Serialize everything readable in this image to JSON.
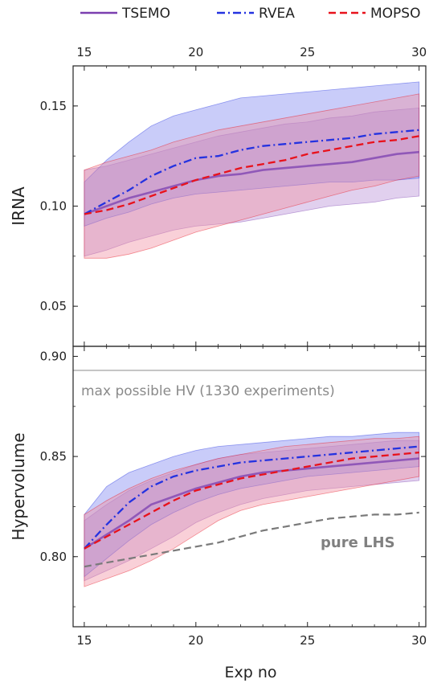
{
  "legend": {
    "placement": "top",
    "items": [
      {
        "name": "TSEMO",
        "color": "#7b3fb0",
        "dash": "solid"
      },
      {
        "name": "RVEA",
        "color": "#2432e0",
        "dash": "dashdot"
      },
      {
        "name": "MOPSO",
        "color": "#e8121c",
        "dash": "dashed"
      }
    ]
  },
  "xlabel": "Exp no",
  "chart_data": [
    {
      "type": "line",
      "panel": "top",
      "ylabel": "IRNA",
      "xlim": [
        14.5,
        30.3
      ],
      "ylim": [
        0.03,
        0.17
      ],
      "xticks": [
        15,
        20,
        25,
        30
      ],
      "yticks": [
        0.05,
        0.1,
        0.15
      ],
      "ytick_labels": [
        "0.05",
        "0.10",
        "0.15"
      ],
      "x": [
        15,
        16,
        17,
        18,
        19,
        20,
        21,
        22,
        23,
        24,
        25,
        26,
        27,
        28,
        29,
        30
      ],
      "series": [
        {
          "name": "TSEMO",
          "color": "#7b3fb0",
          "dash": "solid",
          "values": [
            0.096,
            0.1,
            0.104,
            0.107,
            0.11,
            0.113,
            0.115,
            0.116,
            0.118,
            0.119,
            0.12,
            0.121,
            0.122,
            0.124,
            0.126,
            0.127
          ],
          "upper": [
            0.118,
            0.12,
            0.123,
            0.126,
            0.129,
            0.132,
            0.135,
            0.137,
            0.139,
            0.141,
            0.142,
            0.144,
            0.145,
            0.147,
            0.148,
            0.149
          ],
          "lower": [
            0.075,
            0.078,
            0.082,
            0.085,
            0.088,
            0.09,
            0.091,
            0.092,
            0.094,
            0.096,
            0.098,
            0.1,
            0.101,
            0.102,
            0.104,
            0.105
          ]
        },
        {
          "name": "RVEA",
          "color": "#2432e0",
          "dash": "dashdot",
          "values": [
            0.096,
            0.102,
            0.108,
            0.115,
            0.12,
            0.124,
            0.125,
            0.128,
            0.13,
            0.131,
            0.132,
            0.133,
            0.134,
            0.136,
            0.137,
            0.138
          ],
          "upper": [
            0.112,
            0.123,
            0.132,
            0.14,
            0.145,
            0.148,
            0.151,
            0.154,
            0.155,
            0.156,
            0.157,
            0.158,
            0.159,
            0.16,
            0.161,
            0.162
          ],
          "lower": [
            0.09,
            0.094,
            0.097,
            0.101,
            0.104,
            0.106,
            0.107,
            0.108,
            0.109,
            0.11,
            0.111,
            0.112,
            0.112,
            0.113,
            0.113,
            0.114
          ]
        },
        {
          "name": "MOPSO",
          "color": "#e8121c",
          "dash": "dashed",
          "values": [
            0.096,
            0.098,
            0.101,
            0.105,
            0.109,
            0.113,
            0.116,
            0.119,
            0.121,
            0.123,
            0.126,
            0.128,
            0.13,
            0.132,
            0.133,
            0.135
          ],
          "upper": [
            0.118,
            0.122,
            0.125,
            0.128,
            0.132,
            0.135,
            0.138,
            0.14,
            0.142,
            0.144,
            0.146,
            0.148,
            0.15,
            0.152,
            0.154,
            0.156
          ],
          "lower": [
            0.074,
            0.074,
            0.076,
            0.079,
            0.083,
            0.087,
            0.09,
            0.093,
            0.096,
            0.099,
            0.102,
            0.105,
            0.108,
            0.11,
            0.113,
            0.115
          ]
        }
      ]
    },
    {
      "type": "line",
      "panel": "bottom",
      "ylabel": "Hypervolume",
      "xlim": [
        14.5,
        30.3
      ],
      "ylim": [
        0.765,
        0.905
      ],
      "xticks": [
        15,
        20,
        25,
        30
      ],
      "yticks": [
        0.8,
        0.85,
        0.9
      ],
      "ytick_labels": [
        "0.80",
        "0.85",
        "0.90"
      ],
      "x": [
        15,
        16,
        17,
        18,
        19,
        20,
        21,
        22,
        23,
        24,
        25,
        26,
        27,
        28,
        29,
        30
      ],
      "reference_line": {
        "y": 0.893,
        "label": "max possible HV (1330 experiments)",
        "color": "#aaaaaa"
      },
      "baseline": {
        "name": "pure LHS",
        "color": "#7a7a7a",
        "dash": "dashed",
        "values": [
          0.795,
          0.797,
          0.799,
          0.801,
          0.803,
          0.805,
          0.807,
          0.81,
          0.813,
          0.815,
          0.817,
          0.819,
          0.82,
          0.821,
          0.821,
          0.822
        ]
      },
      "series": [
        {
          "name": "TSEMO",
          "color": "#7b3fb0",
          "dash": "solid",
          "values": [
            0.804,
            0.811,
            0.818,
            0.826,
            0.83,
            0.834,
            0.837,
            0.84,
            0.842,
            0.843,
            0.844,
            0.845,
            0.846,
            0.847,
            0.848,
            0.849
          ],
          "upper": [
            0.818,
            0.826,
            0.833,
            0.838,
            0.842,
            0.846,
            0.849,
            0.851,
            0.852,
            0.853,
            0.854,
            0.855,
            0.856,
            0.857,
            0.858,
            0.858
          ],
          "lower": [
            0.788,
            0.793,
            0.798,
            0.804,
            0.81,
            0.817,
            0.822,
            0.826,
            0.829,
            0.831,
            0.833,
            0.834,
            0.835,
            0.836,
            0.837,
            0.838
          ]
        },
        {
          "name": "RVEA",
          "color": "#2432e0",
          "dash": "dashdot",
          "values": [
            0.804,
            0.816,
            0.827,
            0.835,
            0.84,
            0.843,
            0.845,
            0.847,
            0.848,
            0.849,
            0.85,
            0.851,
            0.852,
            0.853,
            0.854,
            0.855
          ],
          "upper": [
            0.821,
            0.835,
            0.842,
            0.846,
            0.85,
            0.853,
            0.855,
            0.856,
            0.857,
            0.858,
            0.859,
            0.86,
            0.86,
            0.861,
            0.862,
            0.862
          ],
          "lower": [
            0.79,
            0.799,
            0.808,
            0.816,
            0.822,
            0.827,
            0.831,
            0.834,
            0.836,
            0.838,
            0.84,
            0.841,
            0.842,
            0.843,
            0.844,
            0.845
          ]
        },
        {
          "name": "MOPSO",
          "color": "#e8121c",
          "dash": "dashed",
          "values": [
            0.804,
            0.81,
            0.816,
            0.822,
            0.828,
            0.833,
            0.836,
            0.839,
            0.841,
            0.843,
            0.845,
            0.847,
            0.849,
            0.85,
            0.851,
            0.852
          ],
          "upper": [
            0.821,
            0.828,
            0.834,
            0.839,
            0.843,
            0.846,
            0.849,
            0.851,
            0.853,
            0.855,
            0.856,
            0.857,
            0.858,
            0.859,
            0.859,
            0.86
          ],
          "lower": [
            0.785,
            0.789,
            0.793,
            0.798,
            0.804,
            0.811,
            0.818,
            0.823,
            0.826,
            0.828,
            0.83,
            0.832,
            0.834,
            0.836,
            0.838,
            0.84
          ]
        }
      ]
    }
  ]
}
